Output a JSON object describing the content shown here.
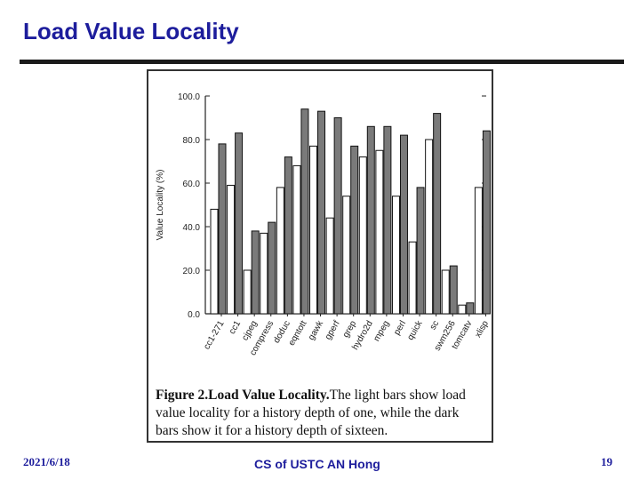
{
  "slide": {
    "title": "Load Value Locality",
    "footer_date": "2021/6/18",
    "footer_center": "CS of USTC AN Hong",
    "page_number": "19",
    "colors": {
      "title": "#1d1d9c",
      "rule": "#1a1a1a"
    }
  },
  "caption": {
    "label": "Figure 2.Load Value Locality.",
    "text": "The light bars show load value locality for a history depth of one, while the dark bars show it for a history depth of sixteen."
  },
  "chart_data": {
    "type": "bar",
    "ylabel": "Value Locality (%)",
    "xlabel": "",
    "ylim": [
      0,
      100
    ],
    "yticks": [
      "0.0",
      "20.0",
      "40.0",
      "60.0",
      "80.0",
      "100.0"
    ],
    "grid": false,
    "categories": [
      "cc1-271",
      "cc1",
      "cjpeg",
      "compress",
      "doduc",
      "eqntott",
      "gawk",
      "gperf",
      "grep",
      "hydro2d",
      "mpeg",
      "perl",
      "quick",
      "sc",
      "swm256",
      "tomcatv",
      "xlisp"
    ],
    "series": [
      {
        "values": [
          48,
          59,
          20,
          37,
          58,
          68,
          77,
          44,
          54,
          72,
          75,
          54,
          33,
          80,
          20,
          4,
          58
        ],
        "color": "#ffffff"
      },
      {
        "values": [
          78,
          83,
          38,
          42,
          72,
          94,
          93,
          90,
          77,
          86,
          86,
          82,
          58,
          92,
          22,
          5,
          84
        ],
        "color": "#7a7a7a"
      }
    ]
  }
}
